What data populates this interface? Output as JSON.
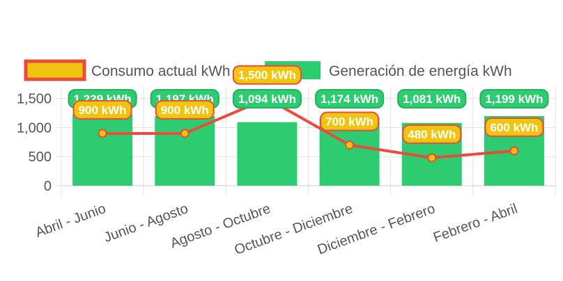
{
  "chart_data": {
    "type": "bar",
    "categories": [
      "Abril - Junio",
      "Junio - Agosto",
      "Agosto - Octubre",
      "Octubre - Diciembre",
      "Diciembre - Febrero",
      "Febrero - Abril"
    ],
    "ylim": [
      0,
      1700
    ],
    "yticks": [
      0,
      500,
      1000,
      1500
    ],
    "ytick_labels": [
      "0",
      "500",
      "1,000",
      "1,500"
    ],
    "grid": true,
    "legend_position": "top",
    "series": [
      {
        "name": "Generación de energía kWh",
        "type": "bar",
        "color": "#2ecc71",
        "values": [
          1229,
          1197,
          1094,
          1174,
          1081,
          1199
        ],
        "labels": [
          "1,229 kWh",
          "1,197 kWh",
          "1,094 kWh",
          "1,174 kWh",
          "1,081 kWh",
          "1,199 kWh"
        ]
      },
      {
        "name": "Consumo actual kWh",
        "type": "line",
        "color": "#e74c3c",
        "fill": "#f1c40f",
        "values": [
          900,
          900,
          1500,
          700,
          480,
          600
        ],
        "labels": [
          "900 kWh",
          "900 kWh",
          "1,500 kWh",
          "700 kWh",
          "480 kWh",
          "600 kWh"
        ]
      }
    ]
  }
}
